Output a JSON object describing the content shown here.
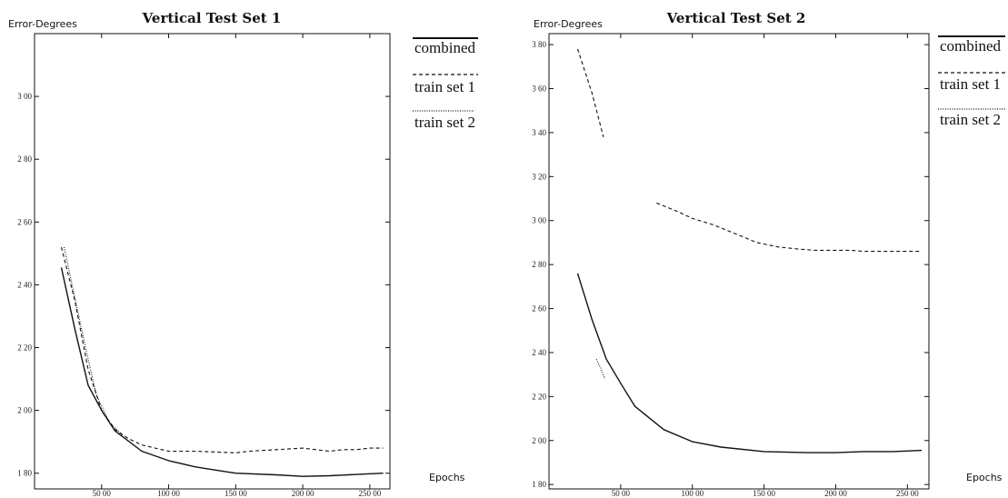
{
  "chart_data": [
    {
      "type": "line",
      "title": "Vertical Test Set 1",
      "ylabel": "Error-Degrees",
      "xlabel": "Epochs",
      "xlim": [
        0,
        265
      ],
      "ylim": [
        175,
        320
      ],
      "x_ticks": [
        50,
        100,
        150,
        200,
        250
      ],
      "x_tick_labels": [
        "50 00",
        "100 00",
        "150 00",
        "200 00",
        "250 00"
      ],
      "y_ticks": [
        180,
        200,
        220,
        240,
        260,
        280,
        300
      ],
      "y_tick_labels": [
        "1 80",
        "2 00",
        "2 20",
        "2 40",
        "2 60",
        "2 80",
        "3 00"
      ],
      "legend": [
        "combined",
        "train set 1",
        "train set 2"
      ],
      "series": [
        {
          "name": "combined",
          "style": "solid",
          "x": [
            20,
            30,
            40,
            50,
            60,
            80,
            100,
            120,
            150,
            180,
            200,
            220,
            240,
            260
          ],
          "y": [
            245.5,
            226,
            208,
            200,
            193.5,
            187,
            184,
            182,
            180,
            179.5,
            179,
            179.2,
            179.6,
            180
          ]
        },
        {
          "name": "train set 1",
          "style": "dashed",
          "x": [
            20,
            30,
            40,
            50,
            60,
            70,
            80,
            90,
            100,
            110,
            120,
            150,
            160,
            200,
            210,
            220,
            230,
            240,
            250,
            260
          ],
          "y": [
            252,
            235,
            213,
            200,
            194,
            191,
            189,
            188,
            187,
            187,
            187,
            186.5,
            187,
            188,
            187.5,
            187,
            187.5,
            187.5,
            188,
            188
          ]
        },
        {
          "name": "train set 2",
          "style": "dotted",
          "x": [
            22,
            30,
            38,
            46,
            56,
            66
          ],
          "y": [
            252,
            236,
            220,
            205,
            196,
            192
          ]
        }
      ]
    },
    {
      "type": "line",
      "title": "Vertical Test Set 2",
      "ylabel": "Error-Degrees",
      "xlabel": "Epochs",
      "xlim": [
        0,
        265
      ],
      "ylim": [
        178,
        385
      ],
      "x_ticks": [
        50,
        100,
        150,
        200,
        250
      ],
      "x_tick_labels": [
        "50 00",
        "100 00",
        "150 00",
        "200 00",
        "250 00"
      ],
      "y_ticks": [
        180,
        200,
        220,
        240,
        260,
        280,
        300,
        320,
        340,
        360,
        380
      ],
      "y_tick_labels": [
        "1 80",
        "2 00",
        "2 20",
        "2 40",
        "2 60",
        "2 80",
        "3 00",
        "3 20",
        "3 40",
        "3 60",
        "3 80"
      ],
      "legend": [
        "combined",
        "train set 1",
        "train set 2"
      ],
      "series": [
        {
          "name": "combined",
          "style": "solid",
          "x": [
            20,
            30,
            40,
            50,
            60,
            80,
            100,
            120,
            150,
            180,
            200,
            220,
            240,
            260
          ],
          "y": [
            276,
            255,
            237,
            226,
            215.5,
            205,
            199.5,
            197,
            195,
            194.5,
            194.5,
            195,
            195,
            195.5
          ]
        },
        {
          "name": "train set 1",
          "style": "dashed",
          "x": [
            20,
            30,
            38
          ],
          "y": [
            378,
            358,
            338
          ]
        },
        {
          "name": "train set 1",
          "style": "dashed",
          "x": [
            75,
            90,
            100,
            115,
            130,
            145,
            160,
            175,
            185,
            210,
            220,
            230,
            240,
            250,
            260
          ],
          "y": [
            308,
            304,
            301,
            298,
            294,
            290,
            288,
            287,
            286.5,
            286.5,
            286,
            286,
            286,
            286,
            286
          ]
        },
        {
          "name": "train set 2",
          "style": "dotted",
          "x": [
            33,
            36,
            39
          ],
          "y": [
            237,
            233,
            228
          ]
        }
      ]
    }
  ]
}
